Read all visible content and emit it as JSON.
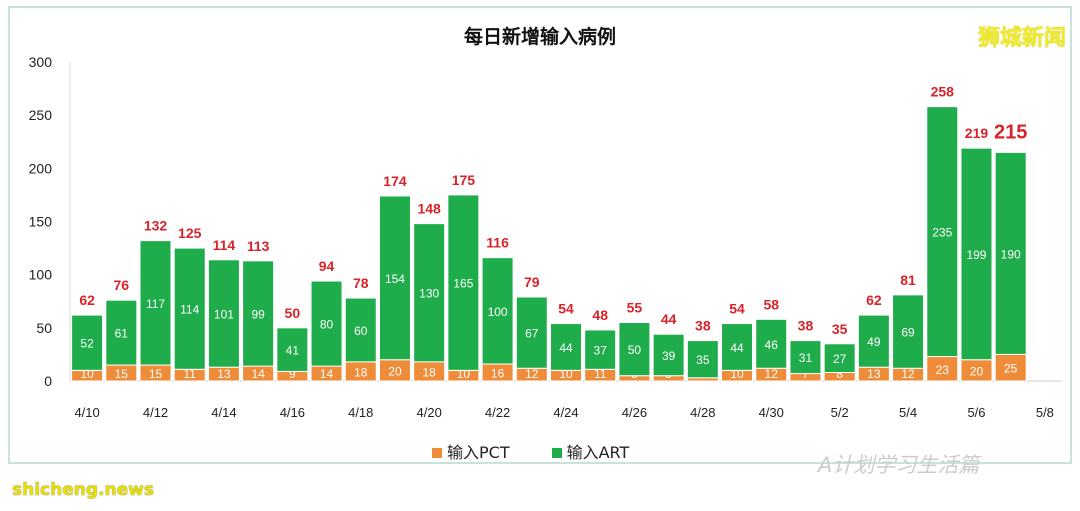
{
  "brand": "狮城新闻",
  "watermark": "A计划学习生活篇",
  "source": "shicheng.news",
  "chart_data": {
    "type": "bar",
    "stacked": true,
    "title": "每日新增输入病例",
    "xlabel": "",
    "ylabel": "",
    "ylim": [
      0,
      300
    ],
    "yticks": [
      0,
      50,
      100,
      150,
      200,
      250,
      300
    ],
    "grid": false,
    "legend_position": "bottom",
    "categories": [
      "4/10",
      "4/11",
      "4/12",
      "4/13",
      "4/14",
      "4/15",
      "4/16",
      "4/17",
      "4/18",
      "4/19",
      "4/20",
      "4/21",
      "4/22",
      "4/23",
      "4/24",
      "4/25",
      "4/26",
      "4/27",
      "4/28",
      "4/29",
      "4/30",
      "5/1",
      "5/2",
      "5/3",
      "5/4",
      "5/5",
      "5/6",
      "5/7"
    ],
    "xtick_labels": [
      "4/10",
      "4/12",
      "4/14",
      "4/16",
      "4/18",
      "4/20",
      "4/22",
      "4/24",
      "4/26",
      "4/28",
      "4/30",
      "5/2",
      "5/4",
      "5/6",
      "5/8"
    ],
    "series": [
      {
        "name": "输入PCT",
        "color": "#ef8c3a",
        "values": [
          10,
          15,
          15,
          11,
          13,
          14,
          9,
          14,
          18,
          20,
          18,
          10,
          16,
          12,
          10,
          11,
          5,
          5,
          3,
          10,
          12,
          7,
          8,
          13,
          12,
          23,
          20,
          25
        ]
      },
      {
        "name": "输入ART",
        "color": "#1fac4b",
        "values": [
          52,
          61,
          117,
          114,
          101,
          99,
          41,
          80,
          60,
          154,
          130,
          165,
          100,
          67,
          44,
          37,
          50,
          39,
          35,
          44,
          46,
          31,
          27,
          49,
          69,
          235,
          199,
          190
        ]
      }
    ],
    "totals": [
      62,
      76,
      132,
      125,
      114,
      113,
      50,
      94,
      78,
      174,
      148,
      175,
      116,
      79,
      54,
      48,
      55,
      44,
      38,
      54,
      58,
      38,
      35,
      62,
      81,
      258,
      219,
      215
    ],
    "total_label_color": "#d9232a"
  }
}
